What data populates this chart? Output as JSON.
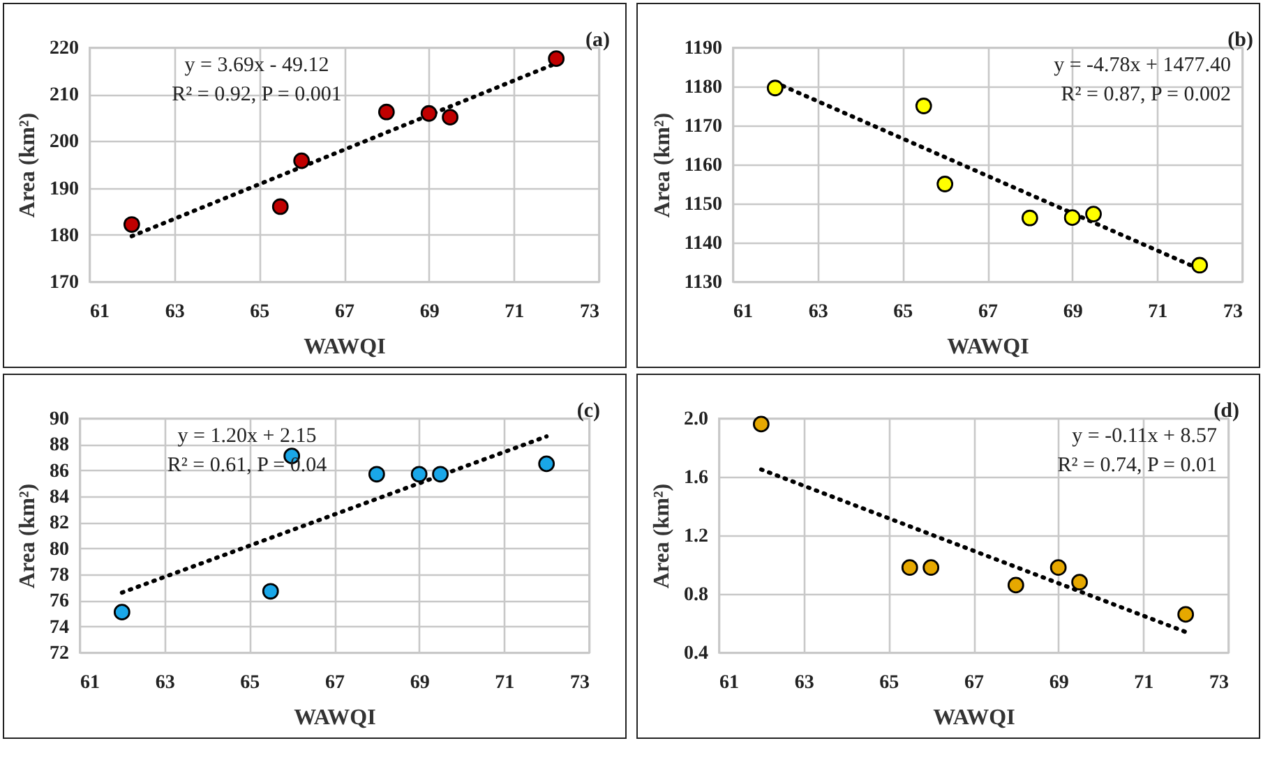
{
  "chart_data": [
    {
      "type": "scatter",
      "title": "(a)",
      "xlabel": "WAWQI",
      "ylabel": "Area (km²)",
      "xlim": [
        61,
        73
      ],
      "xticks": [
        61,
        63,
        65,
        67,
        69,
        71,
        73
      ],
      "ylim": [
        170,
        220
      ],
      "yticks": [
        170,
        180,
        190,
        200,
        210,
        220
      ],
      "grid": true,
      "annotations": [
        "y = 3.69x - 49.12",
        "R² = 0.92, P = 0.001"
      ],
      "series": [
        {
          "type": "scatter",
          "marker": "circle",
          "color": "#c00000",
          "x": [
            62,
            65.5,
            66,
            68,
            69,
            69.5,
            72
          ],
          "values": [
            182.2,
            186,
            195.8,
            206.2,
            205.9,
            205.1,
            217.6
          ]
        },
        {
          "type": "line",
          "color": "#000000",
          "line_style": "dotted",
          "x": [
            62,
            72
          ],
          "values": [
            179.7,
            216.6
          ]
        }
      ]
    },
    {
      "type": "scatter",
      "title": "(b)",
      "xlabel": "WAWQI",
      "ylabel": "Area (km²)",
      "xlim": [
        61,
        73
      ],
      "xticks": [
        61,
        63,
        65,
        67,
        69,
        71,
        73
      ],
      "ylim": [
        1130,
        1190
      ],
      "yticks": [
        1130,
        1140,
        1150,
        1160,
        1170,
        1180,
        1190
      ],
      "grid": true,
      "annotations": [
        "y = -4.78x + 1477.40",
        "R² = 0.87, P = 0.002"
      ],
      "series": [
        {
          "type": "scatter",
          "marker": "circle",
          "color": "#ffff00",
          "x": [
            62,
            65.5,
            66,
            68,
            69,
            69.5,
            72
          ],
          "values": [
            1179.6,
            1175,
            1155,
            1146.3,
            1146.4,
            1147.3,
            1134.2
          ]
        },
        {
          "type": "line",
          "color": "#000000",
          "line_style": "dotted",
          "x": [
            62,
            72
          ],
          "values": [
            1181,
            1133.2
          ]
        }
      ]
    },
    {
      "type": "scatter",
      "title": "(c)",
      "xlabel": "WAWQI",
      "ylabel": "Area (km²)",
      "xlim": [
        61,
        73
      ],
      "xticks": [
        61,
        63,
        65,
        67,
        69,
        71,
        73
      ],
      "ylim": [
        72,
        90
      ],
      "yticks": [
        72,
        74,
        76,
        78,
        80,
        82,
        84,
        86,
        88,
        90
      ],
      "grid": true,
      "annotations": [
        "y = 1.20x + 2.15",
        "R² = 0.61, P = 0.04"
      ],
      "series": [
        {
          "type": "scatter",
          "marker": "circle",
          "color": "#1aa7e8",
          "x": [
            62,
            65.5,
            66,
            68,
            69,
            69.5,
            72
          ],
          "values": [
            75.1,
            76.7,
            87.1,
            85.7,
            85.7,
            85.7,
            86.5
          ]
        },
        {
          "type": "line",
          "color": "#000000",
          "line_style": "dotted",
          "x": [
            62,
            72
          ],
          "values": [
            76.6,
            88.6
          ]
        }
      ]
    },
    {
      "type": "scatter",
      "title": "(d)",
      "xlabel": "WAWQI",
      "ylabel": "Area (km²)",
      "xlim": [
        61,
        73
      ],
      "xticks": [
        61,
        63,
        65,
        67,
        69,
        71,
        73
      ],
      "ylim": [
        0.4,
        2.0
      ],
      "yticks": [
        0.4,
        0.8,
        1.2,
        1.6,
        {
          "value": 2,
          "label": "2.0"
        }
      ],
      "grid": true,
      "annotations": [
        "y = -0.11x + 8.57",
        "R² = 0.74, P = 0.01"
      ],
      "series": [
        {
          "type": "scatter",
          "marker": "circle",
          "color": "#e6a800",
          "x": [
            62,
            65.5,
            66,
            68,
            69,
            69.5,
            72
          ],
          "values": [
            1.96,
            0.98,
            0.98,
            0.86,
            0.98,
            0.88,
            0.66
          ]
        },
        {
          "type": "line",
          "color": "#000000",
          "line_style": "dotted",
          "x": [
            62,
            72
          ],
          "values": [
            1.65,
            0.54
          ]
        }
      ]
    }
  ]
}
